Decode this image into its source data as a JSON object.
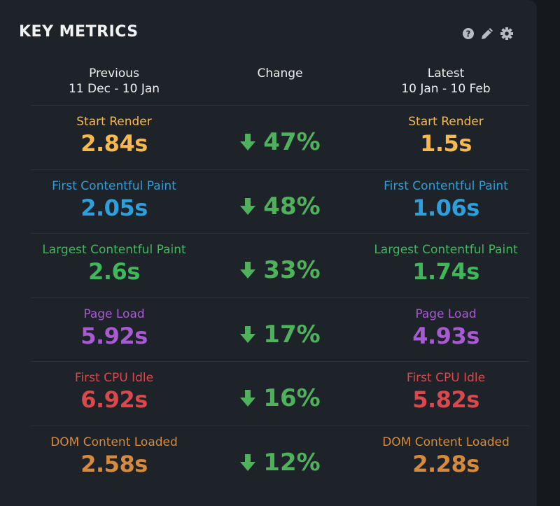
{
  "title": "KEY METRICS",
  "icons": [
    "help-icon",
    "edit-icon",
    "gear-icon"
  ],
  "headers": {
    "previous": "Previous",
    "previous_range": "11 Dec - 10 Jan",
    "change": "Change",
    "latest": "Latest",
    "latest_range": "10 Jan - 10 Feb"
  },
  "change_color": "#4fb15b",
  "rows": [
    {
      "label": "Start Render",
      "previous": "2.84s",
      "change": "47%",
      "latest": "1.5s",
      "color": "#f5b94f"
    },
    {
      "label": "First Contentful Paint",
      "previous": "2.05s",
      "change": "48%",
      "latest": "1.06s",
      "color": "#2e9fdb"
    },
    {
      "label": "Largest Contentful Paint",
      "previous": "2.6s",
      "change": "33%",
      "latest": "1.74s",
      "color": "#3fb75a"
    },
    {
      "label": "Page Load",
      "previous": "5.92s",
      "change": "17%",
      "latest": "4.93s",
      "color": "#a75ad2"
    },
    {
      "label": "First CPU Idle",
      "previous": "6.92s",
      "change": "16%",
      "latest": "5.82s",
      "color": "#d9484c"
    },
    {
      "label": "DOM Content Loaded",
      "previous": "2.58s",
      "change": "12%",
      "latest": "2.28s",
      "color": "#d68a3c"
    }
  ]
}
